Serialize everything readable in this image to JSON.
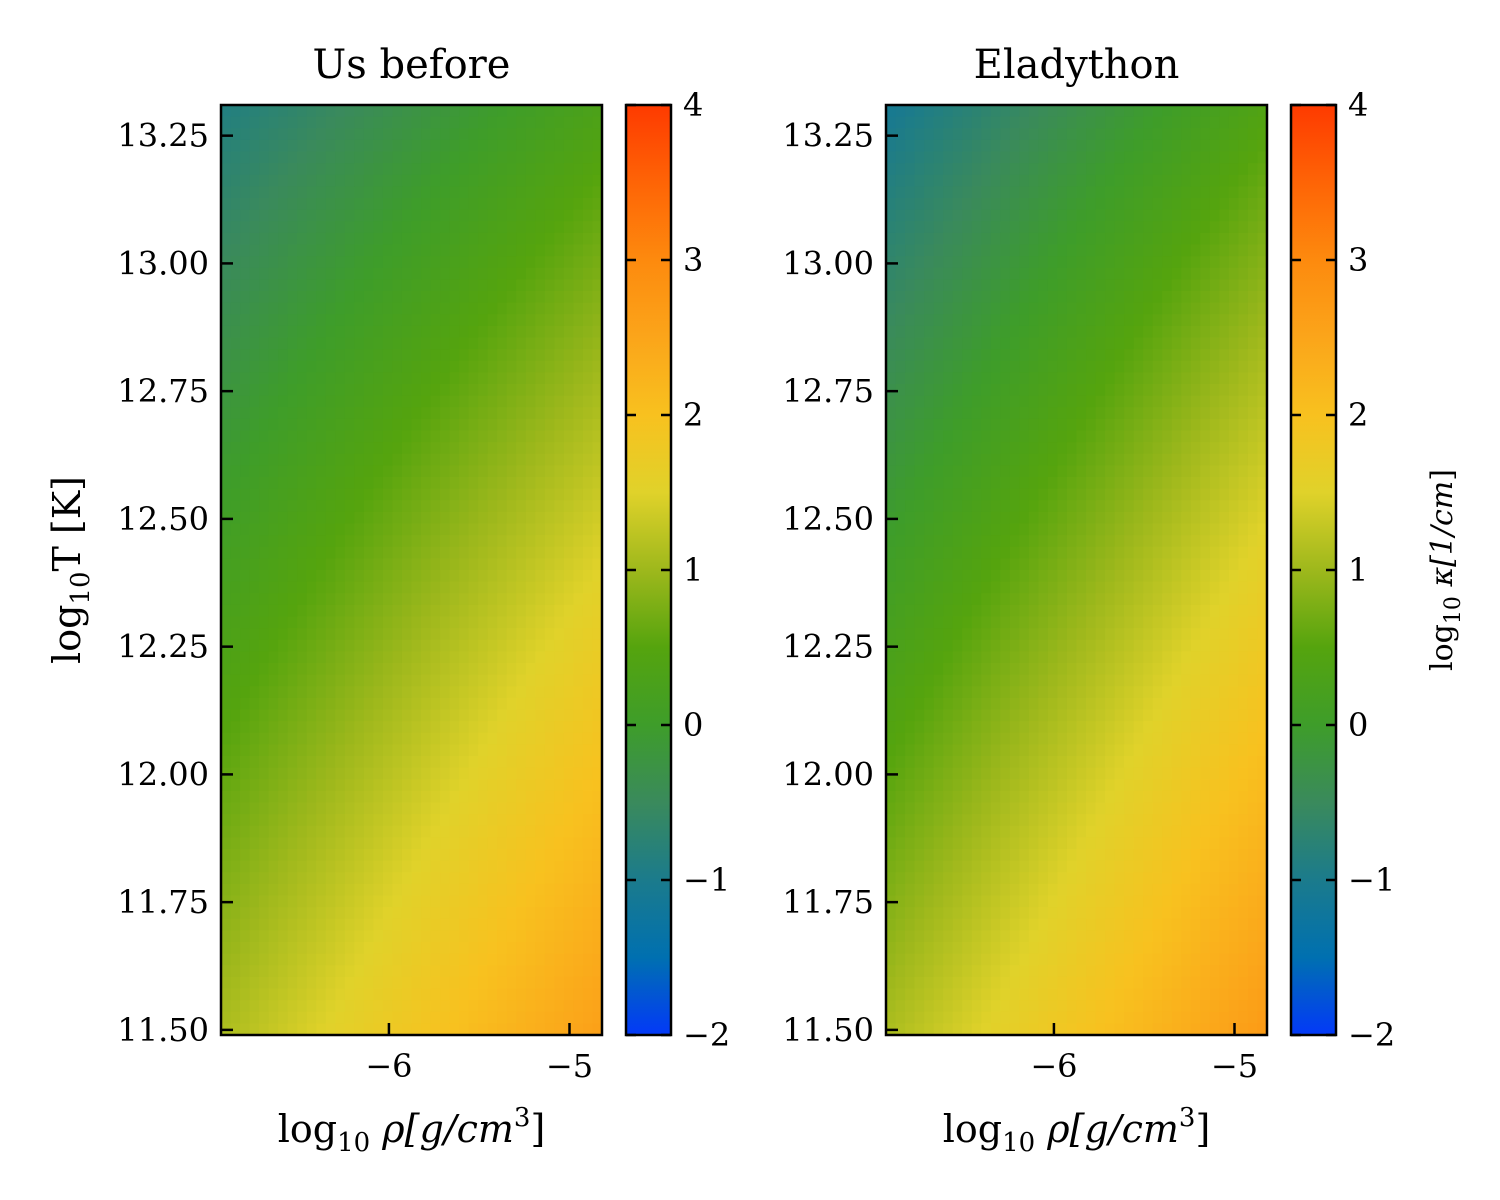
{
  "chart_data": [
    {
      "type": "heatmap",
      "title": "Us before",
      "xlabel": "log10 ρ[g/cm3]",
      "ylabel": "log10 T [K]",
      "xlim": [
        -6.93,
        -4.82
      ],
      "ylim": [
        11.49,
        13.31
      ],
      "xticks": [
        -6,
        -5
      ],
      "xtick_labels": [
        "−6",
        "−5"
      ],
      "yticks": [
        11.5,
        11.75,
        12.0,
        12.25,
        12.5,
        12.75,
        13.0,
        13.25
      ],
      "ytick_labels": [
        "11.50",
        "11.75",
        "12.00",
        "12.25",
        "12.50",
        "12.75",
        "13.00",
        "13.25"
      ],
      "colorbar": {
        "range": [
          -2,
          4
        ],
        "ticks": [
          -2,
          -1,
          0,
          1,
          2,
          3,
          4
        ],
        "tick_labels": [
          "−2",
          "−1",
          "0",
          "1",
          "2",
          "3",
          "4"
        ],
        "label": ""
      },
      "z_corners": {
        "top_left": -0.9,
        "top_right": 0.3,
        "bottom_left": 1.1,
        "bottom_right": 2.6
      },
      "z_grid_description": "log10 κ increases with density and decreases with temperature"
    },
    {
      "type": "heatmap",
      "title": "Eladython",
      "xlabel": "log10 ρ[g/cm3]",
      "ylabel": "",
      "xlim": [
        -6.93,
        -4.82
      ],
      "ylim": [
        11.49,
        13.31
      ],
      "xticks": [
        -6,
        -5
      ],
      "xtick_labels": [
        "−6",
        "−5"
      ],
      "yticks": [
        11.5,
        11.75,
        12.0,
        12.25,
        12.5,
        12.75,
        13.0,
        13.25
      ],
      "ytick_labels": [
        "11.50",
        "11.75",
        "12.00",
        "12.25",
        "12.50",
        "12.75",
        "13.00",
        "13.25"
      ],
      "colorbar": {
        "range": [
          -2,
          4
        ],
        "ticks": [
          -2,
          -1,
          0,
          1,
          2,
          3,
          4
        ],
        "tick_labels": [
          "−2",
          "−1",
          "0",
          "1",
          "2",
          "3",
          "4"
        ],
        "label": "log10 κ[1/cm]"
      },
      "z_corners": {
        "top_left": -1.1,
        "top_right": 0.4,
        "bottom_left": 1.1,
        "bottom_right": 2.7
      }
    }
  ],
  "colormap": {
    "stops": [
      {
        "v": -2,
        "color": "#0339f8"
      },
      {
        "v": -1.5,
        "color": "#0070b0"
      },
      {
        "v": -1,
        "color": "#1b7b8c"
      },
      {
        "v": -0.5,
        "color": "#3a8a5c"
      },
      {
        "v": 0,
        "color": "#3e9d2a"
      },
      {
        "v": 0.5,
        "color": "#55a40e"
      },
      {
        "v": 1,
        "color": "#9eb81c"
      },
      {
        "v": 1.5,
        "color": "#e0d22a"
      },
      {
        "v": 2,
        "color": "#f8c11f"
      },
      {
        "v": 2.5,
        "color": "#fba51a"
      },
      {
        "v": 3,
        "color": "#fd8a0e"
      },
      {
        "v": 3.5,
        "color": "#fe6406"
      },
      {
        "v": 4,
        "color": "#fe3a00"
      }
    ]
  }
}
